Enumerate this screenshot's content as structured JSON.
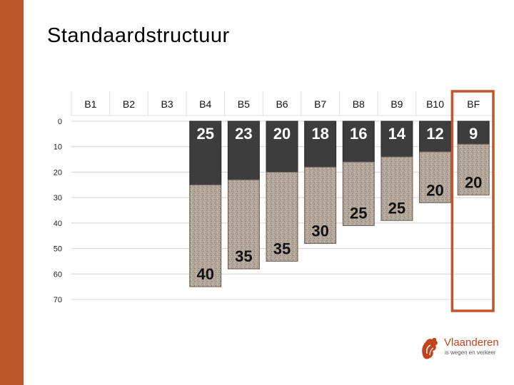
{
  "slide": {
    "title": "Standaardstructuur"
  },
  "logo": {
    "name": "Vlaanderen",
    "tagline": "is wegen en verkeer",
    "icon": "flemish-lion-icon",
    "color": "#c3441c"
  },
  "colors": {
    "accent_bar": "#b8572a",
    "top_layer": "#3d3d3d",
    "base_layer": "#b3a69a",
    "highlight_frame": "#c0562a"
  },
  "chart_data": {
    "type": "bar",
    "subtype": "stacked-layers",
    "categories": [
      "B1",
      "B2",
      "B3",
      "B4",
      "B5",
      "B6",
      "B7",
      "B8",
      "B9",
      "B10",
      "BF"
    ],
    "y_ticks": [
      0,
      10,
      20,
      30,
      40,
      50,
      60,
      70
    ],
    "ylim": [
      0,
      70
    ],
    "y_inverted": true,
    "grid": true,
    "series": [
      {
        "values": [
          null,
          null,
          null,
          25,
          23,
          20,
          18,
          16,
          14,
          12,
          9
        ]
      },
      {
        "values": [
          null,
          null,
          null,
          40,
          35,
          35,
          30,
          25,
          25,
          20,
          20
        ]
      }
    ],
    "highlighted_category": "BF"
  }
}
